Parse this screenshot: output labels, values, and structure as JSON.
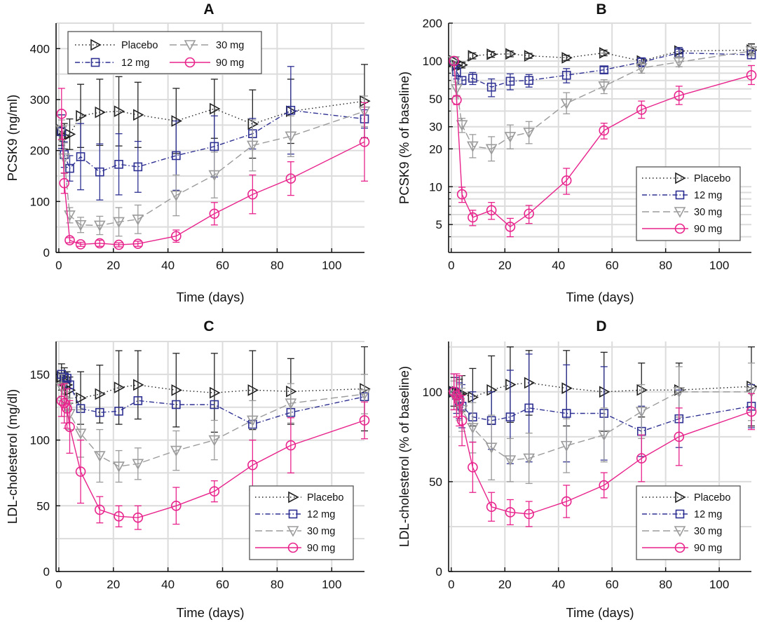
{
  "figure": {
    "series_styles": [
      {
        "name": "Placebo",
        "color": "#222222",
        "dash": "1.5,3.5",
        "marker": "triangle-right"
      },
      {
        "name": "12 mg",
        "color": "#2E3192",
        "dash": "7,3,1.5,3",
        "marker": "square"
      },
      {
        "name": "30 mg",
        "color": "#9B9B9B",
        "dash": "10,5",
        "marker": "triangle-down"
      },
      {
        "name": "90 mg",
        "color": "#E8248C",
        "dash": "",
        "marker": "circle"
      }
    ]
  },
  "chart_data": [
    {
      "panel": "A",
      "type": "line",
      "xlabel": "Time (days)",
      "ylabel": "PCSK9 (ng/ml)",
      "xlim": [
        0,
        112
      ],
      "ylim": [
        0,
        450
      ],
      "xticks": [
        0,
        20,
        40,
        60,
        80,
        100
      ],
      "yticks": [
        0,
        100,
        200,
        300,
        400
      ],
      "ygrid": [
        0,
        50,
        100,
        150,
        200,
        250,
        300,
        350,
        400,
        450
      ],
      "legend": {
        "placement": "top-left",
        "layout": "grid"
      },
      "series": [
        {
          "name": "Placebo",
          "x": [
            1,
            2,
            4,
            8,
            15,
            22,
            29,
            43,
            57,
            71,
            85,
            112
          ],
          "y": [
            240,
            228,
            232,
            268,
            275,
            277,
            270,
            258,
            282,
            252,
            277,
            297
          ],
          "err": [
            30,
            25,
            30,
            62,
            65,
            68,
            64,
            64,
            58,
            67,
            63,
            72
          ]
        },
        {
          "name": "12 mg",
          "x": [
            1,
            2,
            4,
            8,
            15,
            22,
            29,
            43,
            57,
            71,
            85,
            112
          ],
          "y": [
            237,
            192,
            165,
            188,
            158,
            173,
            168,
            190,
            208,
            233,
            279,
            262
          ],
          "err": [
            33,
            25,
            25,
            65,
            55,
            60,
            50,
            68,
            60,
            30,
            86,
            18
          ]
        },
        {
          "name": "30 mg",
          "x": [
            1,
            2,
            4,
            8,
            15,
            22,
            29,
            43,
            57,
            71,
            85,
            112
          ],
          "y": [
            240,
            185,
            73,
            54,
            53,
            60,
            65,
            112,
            152,
            210,
            228,
            277
          ],
          "err": [
            20,
            30,
            15,
            15,
            18,
            28,
            28,
            40,
            45,
            50,
            40,
            30
          ]
        },
        {
          "name": "90 mg",
          "x": [
            1,
            2,
            4,
            8,
            15,
            22,
            29,
            43,
            57,
            71,
            85,
            112
          ],
          "y": [
            272,
            136,
            24,
            16,
            18,
            15,
            17,
            32,
            76,
            114,
            145,
            217
          ],
          "err": [
            50,
            20,
            5,
            4,
            6,
            4,
            5,
            12,
            22,
            38,
            33,
            77
          ]
        }
      ]
    },
    {
      "panel": "B",
      "type": "line",
      "xlabel": "Time (days)",
      "ylabel": "PCSK9 (% of baseline)",
      "xlim": [
        0,
        112
      ],
      "ylim": [
        3,
        200
      ],
      "yscale": "log",
      "xticks": [
        0,
        20,
        40,
        60,
        80,
        100
      ],
      "yticks": [
        5,
        10,
        20,
        30,
        50,
        100,
        200
      ],
      "ygrid": [
        4,
        5,
        6,
        7,
        8,
        9,
        10,
        20,
        30,
        40,
        50,
        60,
        70,
        80,
        90,
        100,
        200
      ],
      "legend": {
        "placement": "bottom-right",
        "layout": "column"
      },
      "series": [
        {
          "name": "Placebo",
          "x": [
            1,
            2,
            4,
            8,
            15,
            22,
            29,
            43,
            57,
            71,
            85,
            112
          ],
          "y": [
            100,
            92,
            93,
            110,
            113,
            114,
            110,
            106,
            116,
            100,
            120,
            122
          ],
          "err_lo": [
            0,
            5,
            5,
            6,
            6,
            6,
            5,
            5,
            6,
            5,
            6,
            8
          ],
          "err_hi": [
            0,
            5,
            5,
            6,
            6,
            6,
            5,
            5,
            6,
            5,
            8,
            15
          ]
        },
        {
          "name": "12 mg",
          "x": [
            1,
            2,
            4,
            8,
            15,
            22,
            29,
            43,
            57,
            71,
            85,
            112
          ],
          "y": [
            100,
            82,
            70,
            73,
            62,
            69,
            70,
            77,
            85,
            98,
            116,
            112
          ],
          "err_lo": [
            0,
            10,
            5,
            8,
            10,
            10,
            8,
            10,
            5,
            8,
            10,
            8
          ],
          "err_hi": [
            0,
            10,
            5,
            8,
            10,
            10,
            8,
            10,
            5,
            8,
            12,
            10
          ]
        },
        {
          "name": "30 mg",
          "x": [
            1,
            2,
            4,
            8,
            15,
            22,
            29,
            43,
            57,
            71,
            85,
            112
          ],
          "y": [
            100,
            60,
            31,
            21,
            20,
            25,
            27,
            46,
            63,
            88,
            98,
            120
          ],
          "err_lo": [
            0,
            8,
            4,
            4,
            4,
            5,
            5,
            8,
            8,
            8,
            8,
            10
          ],
          "err_hi": [
            0,
            8,
            4,
            5,
            5,
            6,
            6,
            10,
            8,
            10,
            10,
            15
          ]
        },
        {
          "name": "90 mg",
          "x": [
            1,
            2,
            4,
            8,
            15,
            22,
            29,
            43,
            57,
            71,
            85,
            112
          ],
          "y": [
            100,
            49,
            8.7,
            5.7,
            6.5,
            4.8,
            6.1,
            11.2,
            28,
            41,
            53,
            77
          ],
          "err_lo": [
            0,
            4,
            1.2,
            0.8,
            1.0,
            0.8,
            1.0,
            2.5,
            4,
            6,
            8,
            12
          ],
          "err_hi": [
            0,
            4,
            1.2,
            0.8,
            1.0,
            0.8,
            1.0,
            2.8,
            4,
            7,
            10,
            15
          ]
        }
      ]
    },
    {
      "panel": "C",
      "type": "line",
      "xlabel": "Time (days)",
      "ylabel": "LDL-cholesterol (mg/dl)",
      "xlim": [
        0,
        112
      ],
      "ylim": [
        0,
        175
      ],
      "xticks": [
        0,
        20,
        40,
        60,
        80,
        100
      ],
      "yticks": [
        0,
        50,
        100,
        150
      ],
      "ygrid": [
        0,
        25,
        50,
        75,
        100,
        125,
        150,
        175
      ],
      "legend": {
        "placement": "bottom-right",
        "layout": "column"
      },
      "series": [
        {
          "name": "Placebo",
          "x": [
            1,
            2,
            3,
            4,
            8,
            15,
            22,
            29,
            43,
            57,
            71,
            85,
            112
          ],
          "y": [
            148,
            145,
            142,
            138,
            132,
            135,
            140,
            142,
            138,
            136,
            138,
            137,
            139
          ],
          "err": [
            10,
            10,
            10,
            10,
            20,
            22,
            28,
            26,
            28,
            30,
            30,
            25,
            32
          ]
        },
        {
          "name": "12 mg",
          "x": [
            1,
            2,
            3,
            4,
            8,
            15,
            22,
            29,
            43,
            57,
            71,
            85,
            112
          ],
          "y": [
            150,
            148,
            147,
            142,
            124,
            121,
            122,
            130,
            127,
            127,
            112,
            121,
            133
          ]
        },
        {
          "name": "30 mg",
          "x": [
            1,
            2,
            3,
            4,
            8,
            15,
            22,
            29,
            43,
            57,
            71,
            85,
            112
          ],
          "y": [
            140,
            130,
            125,
            120,
            105,
            88,
            80,
            82,
            92,
            100,
            115,
            128,
            135
          ],
          "err": [
            10,
            12,
            12,
            12,
            18,
            20,
            12,
            12,
            15,
            15,
            15,
            15,
            15
          ]
        },
        {
          "name": "90 mg",
          "x": [
            1,
            2,
            3,
            4,
            8,
            15,
            22,
            29,
            43,
            57,
            71,
            85,
            112
          ],
          "y": [
            130,
            128,
            124,
            110,
            76,
            47,
            42,
            41,
            50,
            61,
            81,
            96,
            115
          ],
          "err": [
            12,
            15,
            15,
            20,
            24,
            10,
            8,
            9,
            14,
            8,
            19,
            21,
            14
          ]
        }
      ]
    },
    {
      "panel": "D",
      "type": "line",
      "xlabel": "Time (days)",
      "ylabel": "LDL-cholesterol (% of baseline)",
      "xlim": [
        0,
        112
      ],
      "ylim": [
        0,
        128
      ],
      "xticks": [
        0,
        20,
        40,
        60,
        80,
        100
      ],
      "yticks": [
        0,
        50,
        100
      ],
      "ygrid": [
        0,
        25,
        50,
        75,
        100,
        125
      ],
      "legend": {
        "placement": "bottom-right",
        "layout": "column"
      },
      "series": [
        {
          "name": "Placebo",
          "x": [
            1,
            2,
            3,
            4,
            8,
            15,
            22,
            29,
            43,
            57,
            71,
            85,
            112
          ],
          "y": [
            100,
            100,
            99,
            99,
            97,
            101,
            104,
            105,
            102,
            100,
            101,
            101,
            103
          ],
          "err": [
            8,
            8,
            8,
            10,
            16,
            19,
            21,
            18,
            21,
            22,
            15,
            15,
            22
          ]
        },
        {
          "name": "12 mg",
          "x": [
            1,
            2,
            3,
            4,
            8,
            15,
            22,
            29,
            43,
            57,
            71,
            85,
            112
          ],
          "y": [
            100,
            98,
            95,
            92,
            86,
            84,
            86,
            91,
            88,
            88,
            78,
            85,
            92
          ],
          "err": [
            10,
            10,
            10,
            12,
            14,
            16,
            26,
            30,
            27,
            26,
            14,
            16,
            12
          ]
        },
        {
          "name": "30 mg",
          "x": [
            1,
            2,
            3,
            4,
            8,
            15,
            22,
            29,
            43,
            57,
            71,
            85,
            112
          ],
          "y": [
            98,
            96,
            94,
            90,
            80,
            69,
            62,
            63,
            70,
            76,
            89,
            100,
            100
          ],
          "err": [
            8,
            10,
            10,
            12,
            14,
            18,
            12,
            14,
            15,
            15,
            15,
            14,
            16
          ]
        },
        {
          "name": "90 mg",
          "x": [
            1,
            2,
            3,
            4,
            8,
            15,
            22,
            29,
            43,
            57,
            71,
            85,
            112
          ],
          "y": [
            100,
            98,
            95,
            84,
            58,
            36,
            33,
            32,
            39,
            48,
            63,
            75,
            89
          ],
          "err": [
            10,
            12,
            14,
            14,
            14,
            8,
            7,
            7,
            9,
            7,
            13,
            16,
            10
          ]
        }
      ]
    }
  ]
}
